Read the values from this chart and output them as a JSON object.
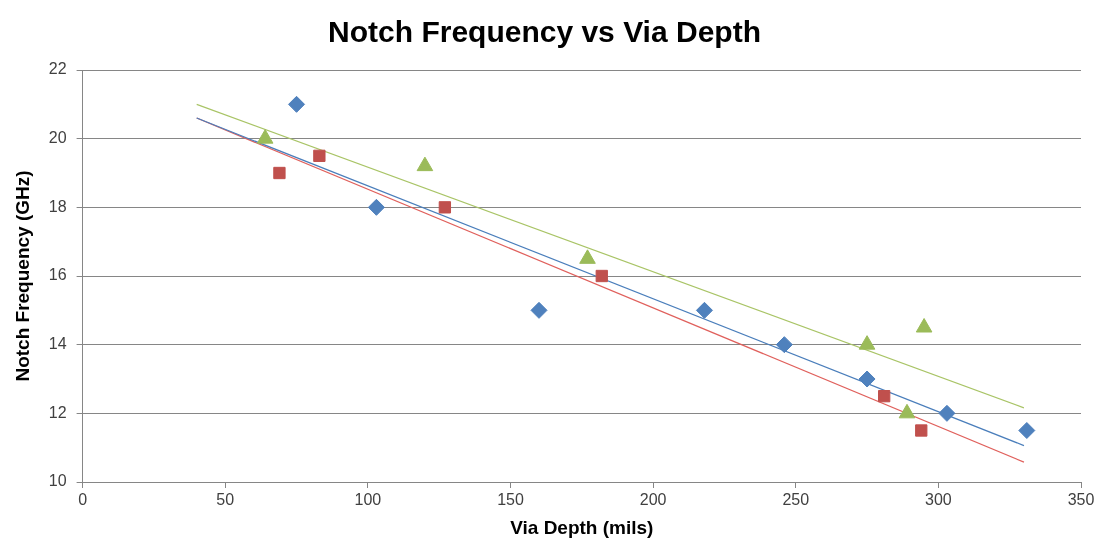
{
  "chart_data": {
    "type": "scatter",
    "title": "Notch Frequency vs Via Depth",
    "xlabel": "Via Depth (mils)",
    "ylabel": "Notch Frequency (GHz)",
    "xlim": [
      0,
      350
    ],
    "xticks": [
      0,
      50,
      100,
      150,
      200,
      250,
      300,
      350
    ],
    "ylim": [
      10,
      22
    ],
    "yticks": [
      10,
      12,
      14,
      16,
      18,
      20,
      22
    ],
    "grid": "y",
    "legend": false,
    "series": [
      {
        "type": "scatter",
        "marker": "diamond",
        "color": "#4f81bd",
        "x": [
          75,
          103,
          160,
          218,
          246,
          275,
          303,
          331
        ],
        "values": [
          21,
          18,
          15,
          15,
          14,
          13,
          12,
          11.5
        ]
      },
      {
        "type": "scatter",
        "marker": "square",
        "color": "#c0504d",
        "x": [
          69,
          83,
          127,
          182,
          281,
          294
        ],
        "values": [
          19,
          19.5,
          18,
          16,
          12.5,
          11.5
        ]
      },
      {
        "type": "scatter",
        "marker": "triangle",
        "color": "#9bbb59",
        "x": [
          64,
          120,
          177,
          275,
          289,
          295
        ],
        "values": [
          20,
          19.2,
          16.5,
          14,
          12,
          14.5
        ]
      },
      {
        "type": "line",
        "marker": "none",
        "color": "#4a7ebb",
        "x": [
          40,
          330
        ],
        "values": [
          20.6,
          11.06
        ]
      },
      {
        "type": "line",
        "marker": "none",
        "color": "#e0605c",
        "x": [
          40,
          330
        ],
        "values": [
          20.6,
          10.58
        ]
      },
      {
        "type": "line",
        "marker": "none",
        "color": "#a9c466",
        "x": [
          40,
          330
        ],
        "values": [
          21.0,
          12.16
        ]
      }
    ]
  }
}
